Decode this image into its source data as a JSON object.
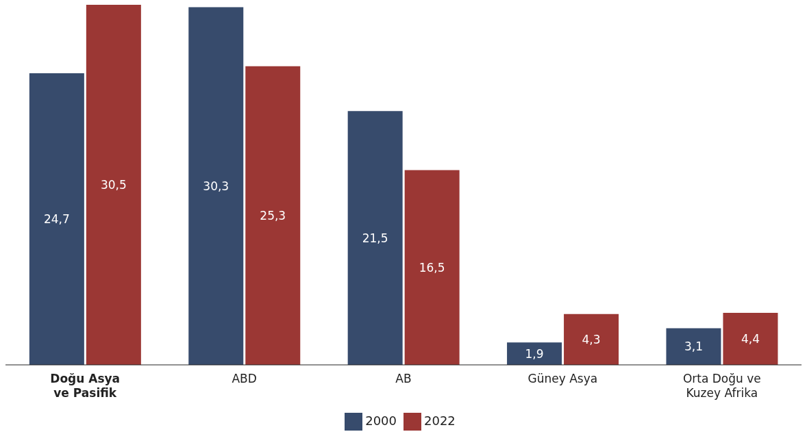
{
  "chart_data": {
    "type": "bar",
    "categories": [
      "Doğu Asya\nve Pasifik",
      "ABD",
      "AB",
      "Güney Asya",
      "Orta Doğu ve\nKuzey Afrika"
    ],
    "series": [
      {
        "name": "2000",
        "color": "#374b6c",
        "values": [
          24.7,
          30.3,
          21.5,
          1.9,
          3.1
        ],
        "value_labels": [
          "24,7",
          "30,3",
          "21,5",
          "1,9",
          "3,1"
        ]
      },
      {
        "name": "2022",
        "color": "#9b3734",
        "values": [
          30.5,
          25.3,
          16.5,
          4.3,
          4.4
        ],
        "value_labels": [
          "30,5",
          "25,3",
          "16,5",
          "4,3",
          "4,4"
        ]
      }
    ],
    "legend": "bottom"
  }
}
